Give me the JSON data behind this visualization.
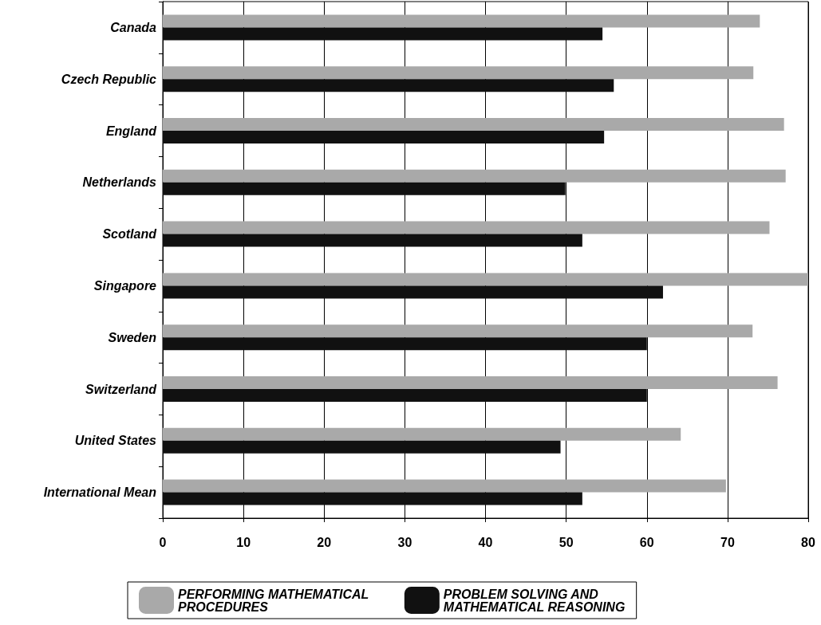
{
  "chart_data": {
    "type": "bar",
    "orientation": "horizontal",
    "categories": [
      "Canada",
      "Czech Republic",
      "England",
      "Netherlands",
      "Scotland",
      "Singapore",
      "Sweden",
      "Switzerland",
      "United States",
      "International Mean"
    ],
    "series": [
      {
        "name": "PERFORMING MATHEMATICAL PROCEDURES",
        "color": "#a9a9a9",
        "values": [
          74,
          73.2,
          77,
          77.2,
          75.2,
          80,
          73.1,
          76.2,
          64.2,
          69.8
        ]
      },
      {
        "name": "PROBLEM SOLVING AND MATHEMATICAL REASONING",
        "color": "#111111",
        "values": [
          54.5,
          55.9,
          54.7,
          49.9,
          52,
          62,
          60,
          60,
          49.3,
          52
        ]
      }
    ],
    "xlim": [
      0,
      80
    ],
    "xticks": [
      0,
      10,
      20,
      30,
      40,
      50,
      60,
      70,
      80
    ],
    "grid": "x",
    "legend": "bottom"
  }
}
